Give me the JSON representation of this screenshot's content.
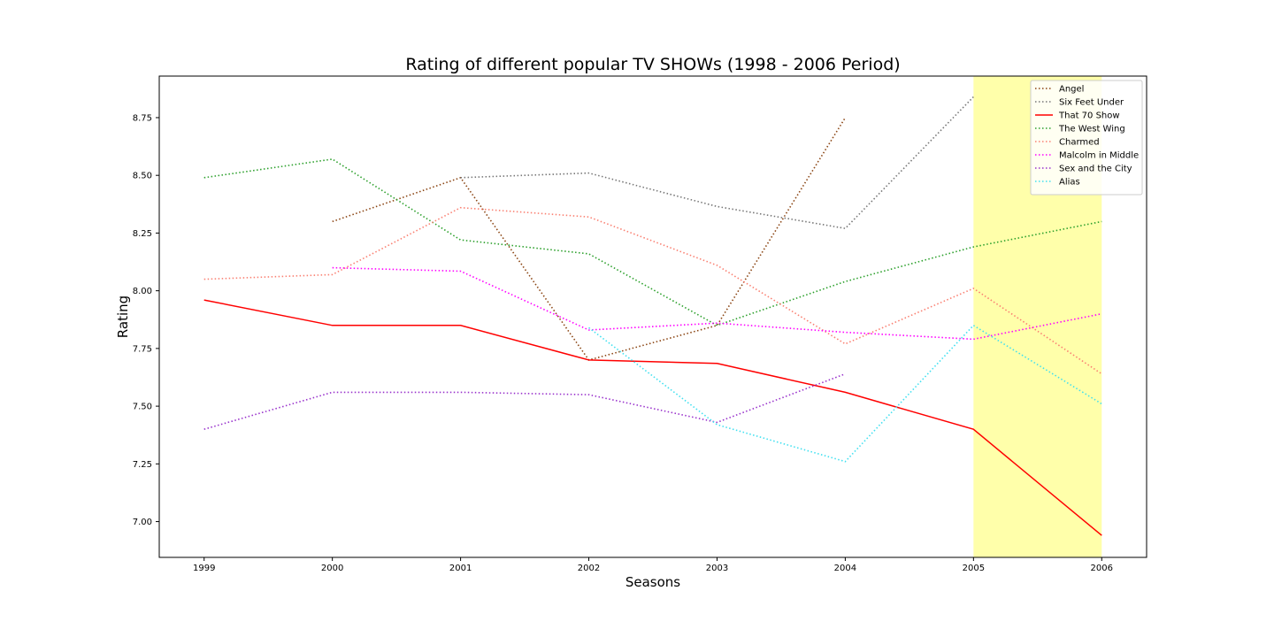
{
  "chart_data": {
    "type": "line",
    "title": "Rating of different popular TV SHOWs (1998 - 2006 Period)",
    "xlabel": "Seasons",
    "ylabel": "Rating",
    "x": [
      1999,
      2000,
      2001,
      2002,
      2003,
      2004,
      2005,
      2006
    ],
    "xlim": [
      1998.65,
      2006.35
    ],
    "ylim": [
      6.845,
      8.93
    ],
    "yticks": [
      7.0,
      7.25,
      7.5,
      7.75,
      8.0,
      8.25,
      8.5,
      8.75
    ],
    "ytick_labels": [
      "7.00",
      "7.25",
      "7.50",
      "7.75",
      "8.00",
      "8.25",
      "8.50",
      "8.75"
    ],
    "xtick_labels": [
      "1999",
      "2000",
      "2001",
      "2002",
      "2003",
      "2004",
      "2005",
      "2006"
    ],
    "grid": false,
    "legend_position": "upper-right",
    "highlight_span": {
      "from": 2005,
      "to": 2006,
      "color": "#ffffaa"
    },
    "series": [
      {
        "name": "Angel",
        "color": "#8b4513",
        "style": "dotted",
        "points": [
          [
            2000,
            8.3
          ],
          [
            2001,
            8.49
          ],
          [
            2002,
            7.7
          ],
          [
            2003,
            7.85
          ],
          [
            2004,
            8.75
          ]
        ]
      },
      {
        "name": "Six Feet Under",
        "color": "#777777",
        "style": "dotted",
        "points": [
          [
            2001,
            8.49
          ],
          [
            2002,
            8.51
          ],
          [
            2003,
            8.365
          ],
          [
            2004,
            8.27
          ],
          [
            2005,
            8.84
          ]
        ]
      },
      {
        "name": "That 70 Show",
        "color": "#ff0000",
        "style": "solid",
        "points": [
          [
            1999,
            7.96
          ],
          [
            2000,
            7.85
          ],
          [
            2001,
            7.85
          ],
          [
            2002,
            7.7
          ],
          [
            2003,
            7.685
          ],
          [
            2004,
            7.56
          ],
          [
            2005,
            7.4
          ],
          [
            2006,
            6.94
          ]
        ]
      },
      {
        "name": "The West Wing",
        "color": "#2ca02c",
        "style": "dotted",
        "points": [
          [
            1999,
            8.49
          ],
          [
            2000,
            8.57
          ],
          [
            2001,
            8.22
          ],
          [
            2002,
            8.16
          ],
          [
            2003,
            7.85
          ],
          [
            2004,
            8.04
          ],
          [
            2005,
            8.19
          ],
          [
            2006,
            8.3
          ]
        ]
      },
      {
        "name": "Charmed",
        "color": "#fa8072",
        "style": "dotted",
        "points": [
          [
            1999,
            8.05
          ],
          [
            2000,
            8.07
          ],
          [
            2001,
            8.36
          ],
          [
            2002,
            8.32
          ],
          [
            2003,
            8.11
          ],
          [
            2004,
            7.77
          ],
          [
            2005,
            8.01
          ],
          [
            2006,
            7.64
          ]
        ]
      },
      {
        "name": "Malcolm in Middle",
        "color": "#ff00ff",
        "style": "dotted",
        "points": [
          [
            2000,
            8.1
          ],
          [
            2001,
            8.085
          ],
          [
            2002,
            7.83
          ],
          [
            2003,
            7.86
          ],
          [
            2004,
            7.82
          ],
          [
            2005,
            7.79
          ],
          [
            2006,
            7.9
          ]
        ]
      },
      {
        "name": "Sex and the City",
        "color": "#9932cc",
        "style": "dotted",
        "points": [
          [
            1999,
            7.4
          ],
          [
            2000,
            7.56
          ],
          [
            2001,
            7.56
          ],
          [
            2002,
            7.55
          ],
          [
            2003,
            7.43
          ],
          [
            2004,
            7.64
          ]
        ]
      },
      {
        "name": "Alias",
        "color": "#40e0f0",
        "style": "dotted",
        "points": [
          [
            2002,
            7.84
          ],
          [
            2003,
            7.42
          ],
          [
            2004,
            7.26
          ],
          [
            2005,
            7.85
          ],
          [
            2006,
            7.51
          ]
        ]
      }
    ]
  }
}
